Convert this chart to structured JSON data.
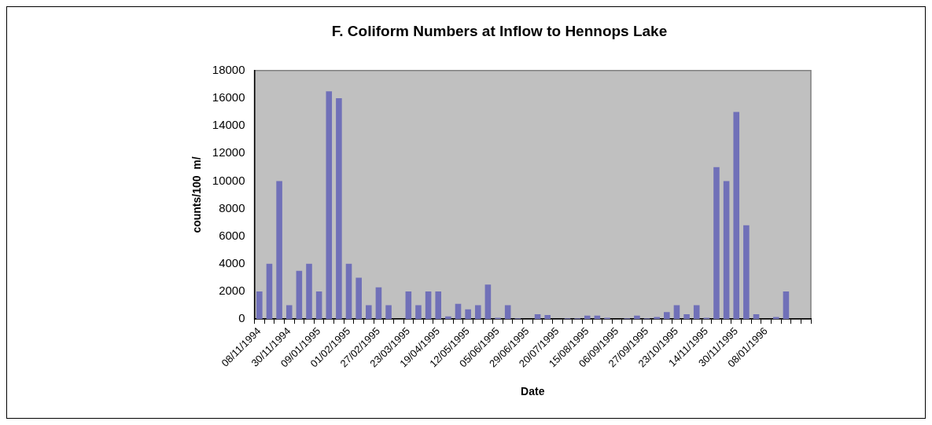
{
  "chart_data": {
    "type": "bar",
    "title": "F. Coliform Numbers at Inflow to Hennops Lake",
    "xlabel": "Date",
    "ylabel": "counts/100  m/",
    "categories": [
      "08/11/1994",
      null,
      null,
      "30/11/1994",
      null,
      null,
      "09/01/1995",
      null,
      null,
      "01/02/1995",
      null,
      null,
      "27/02/1995",
      null,
      null,
      "23/03/1995",
      null,
      null,
      "19/04/1995",
      null,
      null,
      "12/05/1995",
      null,
      null,
      "05/06/1995",
      null,
      null,
      "29/06/1995",
      null,
      null,
      "20/07/1995",
      null,
      null,
      "15/08/1995",
      null,
      null,
      "06/09/1995",
      null,
      null,
      "27/09/1995",
      null,
      null,
      "23/10/1995",
      null,
      null,
      "14/11/1995",
      null,
      null,
      "30/11/1995",
      null,
      null,
      "08/01/1996",
      null,
      null,
      null,
      null
    ],
    "values": [
      2000,
      4000,
      10000,
      1000,
      3500,
      4000,
      2000,
      16500,
      16000,
      4000,
      3000,
      1000,
      2300,
      1000,
      null,
      2000,
      1000,
      2000,
      2000,
      200,
      1100,
      700,
      1000,
      2500,
      100,
      1000,
      50,
      null,
      350,
      300,
      null,
      50,
      50,
      250,
      250,
      100,
      null,
      50,
      250,
      50,
      150,
      500,
      1000,
      350,
      1000,
      100,
      11000,
      10000,
      15000,
      6800,
      350,
      null,
      150,
      2000,
      null,
      null
    ],
    "color": "#7070b8",
    "ylim": [
      0,
      18000
    ],
    "yticks": [
      0,
      2000,
      4000,
      6000,
      8000,
      10000,
      12000,
      14000,
      16000,
      18000
    ],
    "grid": false,
    "legend": false
  }
}
